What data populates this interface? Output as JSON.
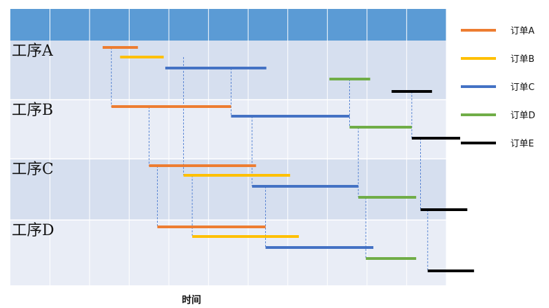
{
  "chart_data": {
    "type": "gantt",
    "title": "",
    "xlabel": "时间",
    "ylabel": "",
    "grid": true,
    "header_color": "#5B9BD5",
    "lane_colors": [
      "#D6DFEF",
      "#E9EDF6"
    ],
    "connector_color": "#4A7BD0",
    "x_range": [
      0,
      11
    ],
    "lanes": [
      {
        "name": "工序A"
      },
      {
        "name": "工序B"
      },
      {
        "name": "工序C"
      },
      {
        "name": "工序D"
      }
    ],
    "series": [
      {
        "name": "订单A",
        "color": "#ED7D31"
      },
      {
        "name": "订单B",
        "color": "#FFC000"
      },
      {
        "name": "订单C",
        "color": "#4472C4"
      },
      {
        "name": "订单D",
        "color": "#70AD47"
      },
      {
        "name": "订单E",
        "color": "#000000"
      }
    ],
    "legend_placement": "right",
    "tasks": [
      {
        "series": 0,
        "lane": 0,
        "start": 1.33,
        "end": 2.22,
        "row": 0
      },
      {
        "series": 1,
        "lane": 0,
        "start": 1.77,
        "end": 2.87,
        "row": 1
      },
      {
        "series": 2,
        "lane": 0,
        "start": 2.91,
        "end": 5.46,
        "row": 2
      },
      {
        "series": 3,
        "lane": 0,
        "start": 7.05,
        "end": 8.08,
        "row": 3
      },
      {
        "series": 4,
        "lane": 0,
        "start": 8.62,
        "end": 9.64,
        "row": 4
      },
      {
        "series": 0,
        "lane": 1,
        "start": 1.55,
        "end": 4.57,
        "row": 0
      },
      {
        "series": 2,
        "lane": 1,
        "start": 4.57,
        "end": 7.56,
        "row": 1
      },
      {
        "series": 3,
        "lane": 1,
        "start": 7.56,
        "end": 9.13,
        "row": 2
      },
      {
        "series": 4,
        "lane": 1,
        "start": 9.13,
        "end": 10.35,
        "row": 3
      },
      {
        "series": 0,
        "lane": 2,
        "start": 2.5,
        "end": 5.2,
        "row": 0
      },
      {
        "series": 1,
        "lane": 2,
        "start": 3.37,
        "end": 6.06,
        "row": 1
      },
      {
        "series": 2,
        "lane": 2,
        "start": 5.1,
        "end": 7.78,
        "row": 2
      },
      {
        "series": 3,
        "lane": 2,
        "start": 7.78,
        "end": 9.24,
        "row": 3
      },
      {
        "series": 4,
        "lane": 2,
        "start": 9.35,
        "end": 10.53,
        "row": 4
      },
      {
        "series": 0,
        "lane": 3,
        "start": 2.71,
        "end": 5.44,
        "row": 0
      },
      {
        "series": 1,
        "lane": 3,
        "start": 3.59,
        "end": 6.28,
        "row": 1
      },
      {
        "series": 2,
        "lane": 3,
        "start": 5.44,
        "end": 8.16,
        "row": 2
      },
      {
        "series": 3,
        "lane": 3,
        "start": 7.97,
        "end": 9.24,
        "row": 3
      },
      {
        "series": 4,
        "lane": 3,
        "start": 9.53,
        "end": 10.7,
        "row": 4
      }
    ],
    "connectors": [
      {
        "x": 1.55,
        "lane_from": 0,
        "row_from": 0,
        "lane_to": 1,
        "row_to": 0
      },
      {
        "x": 2.5,
        "lane_from": 1,
        "row_from": 0,
        "lane_to": 2,
        "row_to": 0
      },
      {
        "x": 2.71,
        "lane_from": 2,
        "row_from": 0,
        "lane_to": 3,
        "row_to": 0
      },
      {
        "x": 3.37,
        "lane_from": 0,
        "row_from": 1,
        "lane_to": 2,
        "row_to": 1
      },
      {
        "x": 3.59,
        "lane_from": 2,
        "row_from": 1,
        "lane_to": 3,
        "row_to": 1
      },
      {
        "x": 4.57,
        "lane_from": 0,
        "row_from": 2,
        "lane_to": 1,
        "row_to": 1
      },
      {
        "x": 5.1,
        "lane_from": 1,
        "row_from": 1,
        "lane_to": 2,
        "row_to": 2
      },
      {
        "x": 5.44,
        "lane_from": 2,
        "row_from": 2,
        "lane_to": 3,
        "row_to": 2
      },
      {
        "x": 7.56,
        "lane_from": 0,
        "row_from": 3,
        "lane_to": 1,
        "row_to": 2
      },
      {
        "x": 7.78,
        "lane_from": 1,
        "row_from": 2,
        "lane_to": 2,
        "row_to": 3
      },
      {
        "x": 7.97,
        "lane_from": 2,
        "row_from": 3,
        "lane_to": 3,
        "row_to": 3
      },
      {
        "x": 9.13,
        "lane_from": 0,
        "row_from": 4,
        "lane_to": 1,
        "row_to": 3
      },
      {
        "x": 9.35,
        "lane_from": 1,
        "row_from": 3,
        "lane_to": 2,
        "row_to": 4
      },
      {
        "x": 9.53,
        "lane_from": 2,
        "row_from": 4,
        "lane_to": 3,
        "row_to": 4
      }
    ]
  }
}
